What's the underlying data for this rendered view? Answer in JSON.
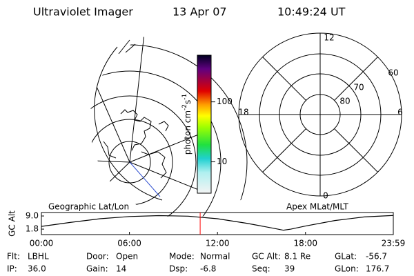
{
  "header": {
    "instrument": "Ultraviolet Imager",
    "date": "13 Apr 07",
    "time": "10:49:24 UT"
  },
  "colorbar": {
    "label": "photon cm",
    "exp1": "-2",
    "unit2": "s",
    "exp2": "-1",
    "range": [
      3,
      600
    ],
    "log": true,
    "ticks": [
      100,
      10
    ]
  },
  "polar": {
    "mlt_labels": [
      "12",
      "18",
      "6",
      "0"
    ],
    "lat_labels": [
      "60",
      "70",
      "80"
    ]
  },
  "chart_data": {
    "type": "line",
    "y_label": "GC Alt",
    "left_label": "Geographic Lat/Lon",
    "right_label": "Apex MLat/MLT",
    "x": [
      0,
      2,
      4,
      6,
      8,
      10,
      12,
      14,
      16,
      16.5,
      17,
      18,
      20,
      22,
      23.983
    ],
    "series": [
      {
        "name": "GC Alt",
        "color": "#000000",
        "values": [
          3.3,
          5.5,
          7.5,
          8.7,
          9.2,
          8.9,
          7.5,
          5.0,
          2.0,
          1.2,
          1.8,
          3.5,
          6.5,
          8.5,
          9.3
        ]
      }
    ],
    "current_x": 10.82,
    "current_color": "#ff0000",
    "xlim": [
      0,
      23.983
    ],
    "xticks": [
      {
        "value": 0,
        "label": "00:00"
      },
      {
        "value": 6,
        "label": "06:00"
      },
      {
        "value": 12,
        "label": "12:00"
      },
      {
        "value": 18,
        "label": "18:00"
      },
      {
        "value": 23.983,
        "label": "23:59"
      }
    ],
    "ylim": [
      -1.2,
      10.9
    ],
    "yticks": [
      {
        "value": 9,
        "label": "9.0"
      },
      1.8
    ]
  },
  "footer": [
    [
      {
        "label": "Flt:",
        "value": "LBHL"
      },
      {
        "label": "Door:",
        "value": "Open"
      },
      {
        "label": "Mode:",
        "value": "Normal"
      },
      {
        "label": "GC Alt:",
        "value": "8.1 Re"
      },
      {
        "label": "GLat:",
        "value": "-56.7"
      }
    ],
    [
      {
        "label": "IP:",
        "value": "36.0"
      },
      {
        "label": "Gain:",
        "value": "14"
      },
      {
        "label": "Dsp:",
        "value": "-6.8"
      },
      {
        "label": "Seq:",
        "value": "39"
      },
      {
        "label": "GLon:",
        "value": "176.7"
      }
    ]
  ]
}
